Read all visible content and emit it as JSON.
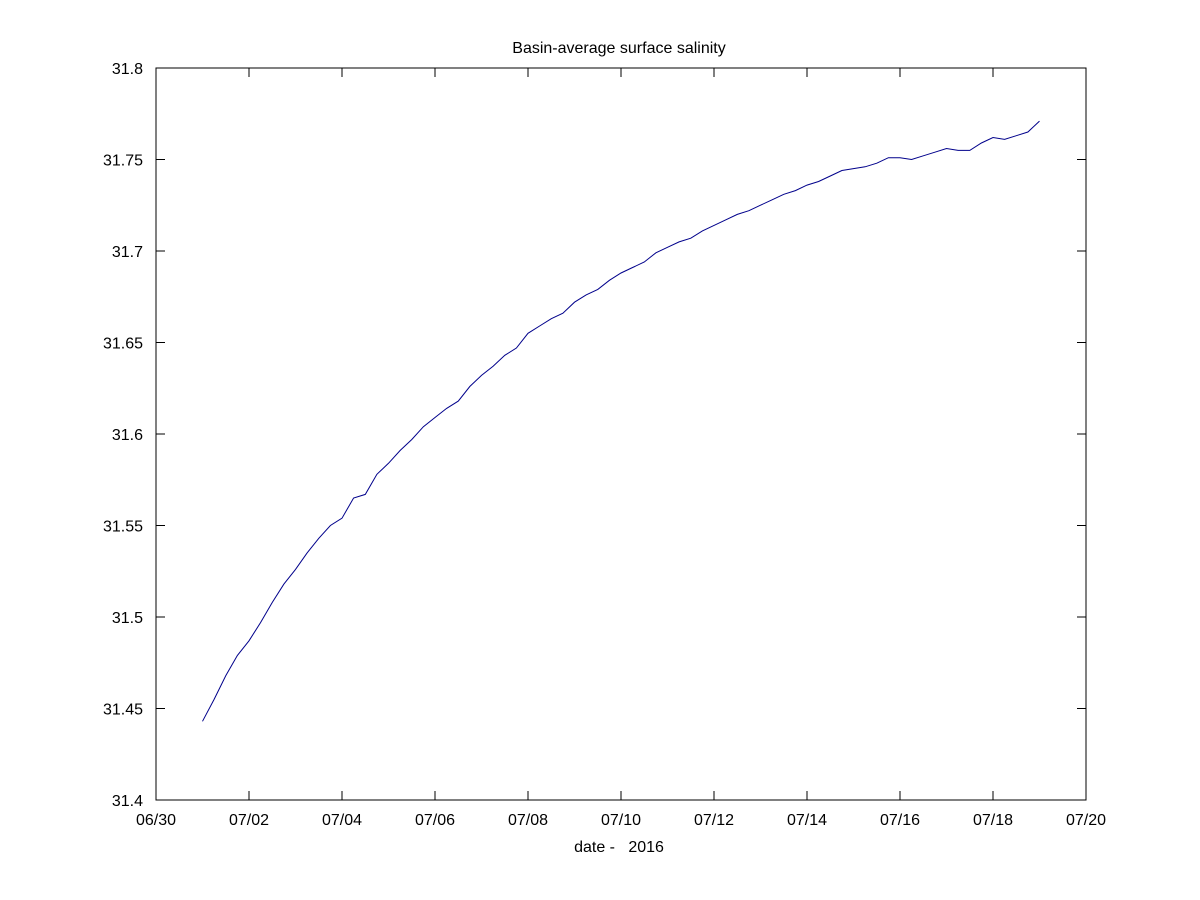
{
  "chart_data": {
    "type": "line",
    "title": "Basin-average surface salinity",
    "xlabel": "date -   2016",
    "ylabel": "",
    "xlim": [
      "2016-06-30",
      "2016-07-20"
    ],
    "ylim": [
      31.4,
      31.8
    ],
    "x_ticks": [
      "06/30",
      "07/02",
      "07/04",
      "07/06",
      "07/08",
      "07/10",
      "07/12",
      "07/14",
      "07/16",
      "07/18",
      "07/20"
    ],
    "y_ticks": [
      "31.4",
      "31.45",
      "31.5",
      "31.55",
      "31.6",
      "31.65",
      "31.7",
      "31.75",
      "31.8"
    ],
    "grid": false,
    "series": [
      {
        "name": "",
        "color": "#00008b",
        "x": [
          "2016-07-01 00:00",
          "2016-07-01 06:00",
          "2016-07-01 12:00",
          "2016-07-01 18:00",
          "2016-07-02 00:00",
          "2016-07-02 06:00",
          "2016-07-02 12:00",
          "2016-07-02 18:00",
          "2016-07-03 00:00",
          "2016-07-03 06:00",
          "2016-07-03 12:00",
          "2016-07-03 18:00",
          "2016-07-04 00:00",
          "2016-07-04 06:00",
          "2016-07-04 12:00",
          "2016-07-04 18:00",
          "2016-07-05 00:00",
          "2016-07-05 06:00",
          "2016-07-05 12:00",
          "2016-07-05 18:00",
          "2016-07-06 00:00",
          "2016-07-06 06:00",
          "2016-07-06 12:00",
          "2016-07-06 18:00",
          "2016-07-07 00:00",
          "2016-07-07 06:00",
          "2016-07-07 12:00",
          "2016-07-07 18:00",
          "2016-07-08 00:00",
          "2016-07-08 06:00",
          "2016-07-08 12:00",
          "2016-07-08 18:00",
          "2016-07-09 00:00",
          "2016-07-09 06:00",
          "2016-07-09 12:00",
          "2016-07-09 18:00",
          "2016-07-10 00:00",
          "2016-07-10 06:00",
          "2016-07-10 12:00",
          "2016-07-10 18:00",
          "2016-07-11 00:00",
          "2016-07-11 06:00",
          "2016-07-11 12:00",
          "2016-07-11 18:00",
          "2016-07-12 00:00",
          "2016-07-12 06:00",
          "2016-07-12 12:00",
          "2016-07-12 18:00",
          "2016-07-13 00:00",
          "2016-07-13 06:00",
          "2016-07-13 12:00",
          "2016-07-13 18:00",
          "2016-07-14 00:00",
          "2016-07-14 06:00",
          "2016-07-14 12:00",
          "2016-07-14 18:00",
          "2016-07-15 00:00",
          "2016-07-15 06:00",
          "2016-07-15 12:00",
          "2016-07-15 18:00",
          "2016-07-16 00:00",
          "2016-07-16 06:00",
          "2016-07-16 12:00",
          "2016-07-16 18:00",
          "2016-07-17 00:00",
          "2016-07-17 06:00",
          "2016-07-17 12:00",
          "2016-07-17 18:00",
          "2016-07-18 00:00",
          "2016-07-18 06:00",
          "2016-07-18 12:00",
          "2016-07-18 18:00",
          "2016-07-19 00:00"
        ],
        "y": [
          31.443,
          31.455,
          31.468,
          31.479,
          31.487,
          31.497,
          31.508,
          31.518,
          31.526,
          31.535,
          31.543,
          31.55,
          31.554,
          31.565,
          31.567,
          31.578,
          31.584,
          31.591,
          31.597,
          31.604,
          31.609,
          31.614,
          31.618,
          31.626,
          31.632,
          31.637,
          31.643,
          31.647,
          31.655,
          31.659,
          31.663,
          31.666,
          31.672,
          31.676,
          31.679,
          31.684,
          31.688,
          31.691,
          31.694,
          31.699,
          31.702,
          31.705,
          31.707,
          31.711,
          31.714,
          31.717,
          31.72,
          31.722,
          31.725,
          31.728,
          31.731,
          31.733,
          31.736,
          31.738,
          31.741,
          31.744,
          31.745,
          31.746,
          31.748,
          31.751,
          31.751,
          31.75,
          31.752,
          31.754,
          31.756,
          31.755,
          31.755,
          31.759,
          31.762,
          31.761,
          31.763,
          31.765,
          31.771
        ]
      }
    ]
  }
}
